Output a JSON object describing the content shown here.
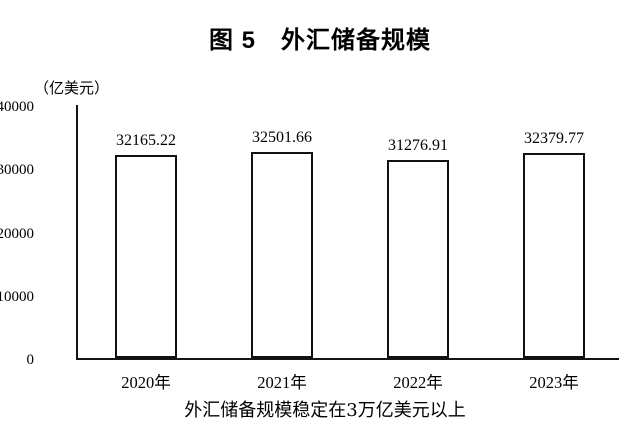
{
  "header": {
    "title": "图 5　外汇储备规模"
  },
  "chart_data": {
    "type": "bar",
    "title": "图 5　外汇储备规模",
    "unit_label": "（亿美元）",
    "categories": [
      "2020年",
      "2021年",
      "2022年",
      "2023年"
    ],
    "values": [
      32165.22,
      32501.66,
      31276.91,
      32379.77
    ],
    "value_labels": [
      "32165.22",
      "32501.66",
      "31276.91",
      "32379.77"
    ],
    "ylim": [
      0,
      40000
    ],
    "yticks": [
      0,
      10000,
      20000,
      30000,
      40000
    ],
    "ytick_labels": [
      "0",
      "10000",
      "20000",
      "30000",
      "40000"
    ],
    "grid": false,
    "legend": "none",
    "bar_fill": "#ffffff",
    "bar_border": "#111111",
    "axis_color": "#141414",
    "text_color": "#000000",
    "caption": "外汇储备规模稳定在3万亿美元以上"
  }
}
